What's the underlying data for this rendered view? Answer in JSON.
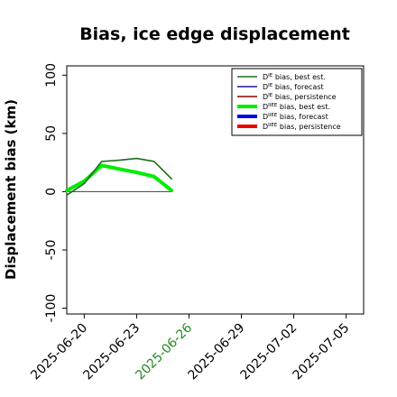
{
  "chart_data": {
    "type": "line",
    "title": "Bias, ice edge displacement",
    "ylabel": "Displacement bias (km)",
    "xlabel": "",
    "ylim": [
      -105,
      108
    ],
    "xlim": [
      "2025-06-19",
      "2025-07-06"
    ],
    "y_ticks": [
      100,
      50,
      0,
      -50,
      -100
    ],
    "x_ticks": [
      {
        "date": "2025-06-20",
        "label": "2025-06-20",
        "color": "#000000"
      },
      {
        "date": "2025-06-23",
        "label": "2025-06-23",
        "color": "#000000"
      },
      {
        "date": "2025-06-26",
        "label": "2025-06-26",
        "color": "#228B22"
      },
      {
        "date": "2025-06-29",
        "label": "2025-06-29",
        "color": "#000000"
      },
      {
        "date": "2025-07-02",
        "label": "2025-07-02",
        "color": "#000000"
      },
      {
        "date": "2025-07-05",
        "label": "2025-07-05",
        "color": "#000000"
      }
    ],
    "legend_position": "top-right",
    "grid": false,
    "series": [
      {
        "key": "dIE_best",
        "label_main": "D",
        "label_sup": "IE",
        "label_rest": " bias, best est.",
        "color": "#1a6e1a",
        "width": 1.6,
        "x": [
          "2025-06-19",
          "2025-06-20",
          "2025-06-21",
          "2025-06-22",
          "2025-06-23",
          "2025-06-24",
          "2025-06-25"
        ],
        "y": [
          -3,
          7,
          26,
          27,
          28.5,
          26,
          11
        ]
      },
      {
        "key": "dIE_forecast",
        "label_main": "D",
        "label_sup": "IE",
        "label_rest": " bias, forecast",
        "color": "#1a1aa0",
        "width": 1.6,
        "x": [],
        "y": []
      },
      {
        "key": "dIE_persistence",
        "label_main": "D",
        "label_sup": "IE",
        "label_rest": " bias, persistence",
        "color": "#8b0000",
        "width": 1.6,
        "x": [],
        "y": []
      },
      {
        "key": "dIIEE_best",
        "label_main": "D",
        "label_sup": "IIEE",
        "label_rest": " bias, best est.",
        "color": "#00ee00",
        "width": 4,
        "x": [
          "2025-06-19",
          "2025-06-20",
          "2025-06-21",
          "2025-06-22",
          "2025-06-23",
          "2025-06-24",
          "2025-06-25"
        ],
        "y": [
          1,
          9,
          22.5,
          19.5,
          16.5,
          13,
          1
        ]
      },
      {
        "key": "dIIEE_forecast",
        "label_main": "D",
        "label_sup": "IIEE",
        "label_rest": " bias, forecast",
        "color": "#0000ee",
        "width": 4,
        "x": [],
        "y": []
      },
      {
        "key": "dIIEE_persistence",
        "label_main": "D",
        "label_sup": "IIEE",
        "label_rest": " bias, persistence",
        "color": "#ee0000",
        "width": 4,
        "x": [],
        "y": []
      }
    ],
    "zero_line": {
      "x": [
        "2025-06-19",
        "2025-06-25"
      ],
      "y": 0,
      "color": "#555555"
    }
  }
}
